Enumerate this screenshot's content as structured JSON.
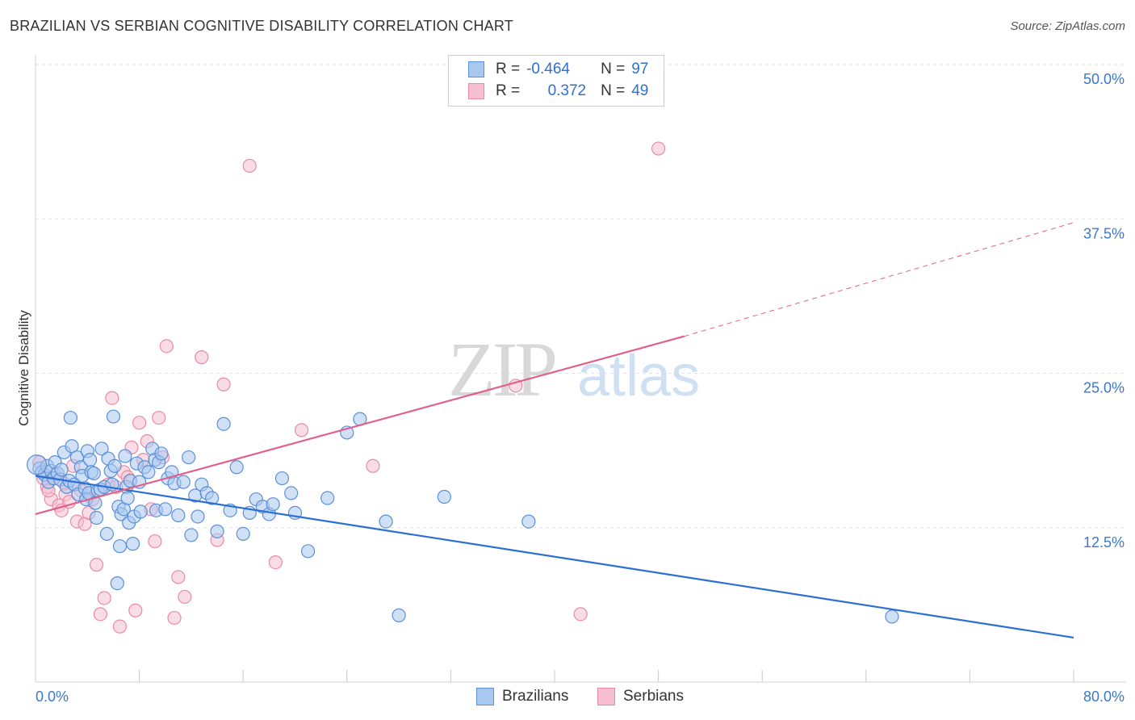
{
  "title": "BRAZILIAN VS SERBIAN COGNITIVE DISABILITY CORRELATION CHART",
  "source": "Source: ZipAtlas.com",
  "watermark": {
    "zip": "ZIP",
    "atlas": "atlas"
  },
  "legend": {
    "brazilians": {
      "r_label": "R =",
      "r_value": "-0.464",
      "n_label": "N =",
      "n_value": "97"
    },
    "serbians": {
      "r_label": "R =",
      "r_value": "0.372",
      "n_label": "N =",
      "n_value": "49"
    }
  },
  "bottom_legend": {
    "brazilians": "Brazilians",
    "serbians": "Serbians"
  },
  "colors": {
    "blue_fill": "#a9c8f0",
    "blue_stroke": "#5b8fd8",
    "blue_line": "#2a6fd1",
    "pink_fill": "#f6bfd0",
    "pink_stroke": "#e88aa8",
    "pink_line": "#e0608a",
    "axis_label": "#3a78cf",
    "grid": "#e2e2e2"
  },
  "chart_data": {
    "type": "scatter",
    "title": "BRAZILIAN VS SERBIAN COGNITIVE DISABILITY CORRELATION CHART",
    "xlabel": "",
    "ylabel": "Cognitive Disability",
    "xlim": [
      0,
      80
    ],
    "ylim": [
      0,
      50
    ],
    "x_tick_labels": [
      "0.0%",
      "80.0%"
    ],
    "y_tick_labels": [
      "12.5%",
      "25.0%",
      "37.5%",
      "50.0%"
    ],
    "y_ticks": [
      12.5,
      25.0,
      37.5,
      50.0
    ],
    "grid": "horizontal dashed",
    "series": [
      {
        "name": "Brazilians",
        "r": -0.464,
        "n": 97,
        "trend": {
          "x": [
            0,
            80
          ],
          "y": [
            16.7,
            3.6
          ]
        },
        "points": [
          [
            0.3,
            17.3
          ],
          [
            0.5,
            17.0
          ],
          [
            0.7,
            16.8
          ],
          [
            0.9,
            17.5
          ],
          [
            1.0,
            16.2
          ],
          [
            1.2,
            17.1
          ],
          [
            1.4,
            16.5
          ],
          [
            1.5,
            17.8
          ],
          [
            1.7,
            16.9
          ],
          [
            1.9,
            16.4
          ],
          [
            2.0,
            17.2
          ],
          [
            2.2,
            18.6
          ],
          [
            2.4,
            15.8
          ],
          [
            2.6,
            16.3
          ],
          [
            2.7,
            21.4
          ],
          [
            2.8,
            19.1
          ],
          [
            3.0,
            16.0
          ],
          [
            3.2,
            18.2
          ],
          [
            3.3,
            15.2
          ],
          [
            3.5,
            17.4
          ],
          [
            3.6,
            16.7
          ],
          [
            3.8,
            15.7
          ],
          [
            3.9,
            14.8
          ],
          [
            4.0,
            18.7
          ],
          [
            4.1,
            15.3
          ],
          [
            4.2,
            18.0
          ],
          [
            4.3,
            17.0
          ],
          [
            4.5,
            16.9
          ],
          [
            4.6,
            14.5
          ],
          [
            4.7,
            13.3
          ],
          [
            4.8,
            15.5
          ],
          [
            5.0,
            15.6
          ],
          [
            5.1,
            18.9
          ],
          [
            5.3,
            15.8
          ],
          [
            5.5,
            12.0
          ],
          [
            5.6,
            18.1
          ],
          [
            5.8,
            17.1
          ],
          [
            5.9,
            16.0
          ],
          [
            6.0,
            21.5
          ],
          [
            6.1,
            17.5
          ],
          [
            6.3,
            8.0
          ],
          [
            6.4,
            14.2
          ],
          [
            6.5,
            11.0
          ],
          [
            6.6,
            13.6
          ],
          [
            6.8,
            14.0
          ],
          [
            6.9,
            18.3
          ],
          [
            7.0,
            15.8
          ],
          [
            7.1,
            14.9
          ],
          [
            7.2,
            12.9
          ],
          [
            7.3,
            16.3
          ],
          [
            7.5,
            11.2
          ],
          [
            7.6,
            13.4
          ],
          [
            7.8,
            17.7
          ],
          [
            8.0,
            16.2
          ],
          [
            8.1,
            13.8
          ],
          [
            8.4,
            17.4
          ],
          [
            8.7,
            17.0
          ],
          [
            9.0,
            18.9
          ],
          [
            9.2,
            18.0
          ],
          [
            9.3,
            13.9
          ],
          [
            9.5,
            17.8
          ],
          [
            9.7,
            18.5
          ],
          [
            10.0,
            14.0
          ],
          [
            10.2,
            16.5
          ],
          [
            10.5,
            17.0
          ],
          [
            10.7,
            16.1
          ],
          [
            11.0,
            13.5
          ],
          [
            11.4,
            16.2
          ],
          [
            11.8,
            18.2
          ],
          [
            12.0,
            11.9
          ],
          [
            12.3,
            15.1
          ],
          [
            12.5,
            13.4
          ],
          [
            12.8,
            16.0
          ],
          [
            13.2,
            15.3
          ],
          [
            13.6,
            14.9
          ],
          [
            14.0,
            12.2
          ],
          [
            14.5,
            20.9
          ],
          [
            15.0,
            13.9
          ],
          [
            15.5,
            17.4
          ],
          [
            16.0,
            12.0
          ],
          [
            16.5,
            13.7
          ],
          [
            17.0,
            14.8
          ],
          [
            17.5,
            14.2
          ],
          [
            18.0,
            13.6
          ],
          [
            18.3,
            14.4
          ],
          [
            19.0,
            16.5
          ],
          [
            19.7,
            15.3
          ],
          [
            20.0,
            13.7
          ],
          [
            21.0,
            10.6
          ],
          [
            22.5,
            14.9
          ],
          [
            24.0,
            20.2
          ],
          [
            25.0,
            21.3
          ],
          [
            27.0,
            13.0
          ],
          [
            28.0,
            5.4
          ],
          [
            31.5,
            15.0
          ],
          [
            38.0,
            13.0
          ],
          [
            66.0,
            5.3
          ]
        ]
      },
      {
        "name": "Serbians",
        "r": 0.372,
        "n": 49,
        "trend": {
          "x": [
            0,
            50
          ],
          "y": [
            13.6,
            28.0
          ],
          "dashed_to": {
            "x": 80,
            "y": 37.2
          }
        },
        "points": [
          [
            0.3,
            17.8
          ],
          [
            0.6,
            16.5
          ],
          [
            0.9,
            15.8
          ],
          [
            1.2,
            14.8
          ],
          [
            1.5,
            16.8
          ],
          [
            1.8,
            14.3
          ],
          [
            2.0,
            13.9
          ],
          [
            2.3,
            15.2
          ],
          [
            2.6,
            14.6
          ],
          [
            2.9,
            17.5
          ],
          [
            3.2,
            13.0
          ],
          [
            3.5,
            15.5
          ],
          [
            3.8,
            12.8
          ],
          [
            4.1,
            13.7
          ],
          [
            4.4,
            14.8
          ],
          [
            4.7,
            9.5
          ],
          [
            5.0,
            5.5
          ],
          [
            5.3,
            6.8
          ],
          [
            5.6,
            16.0
          ],
          [
            5.9,
            23.0
          ],
          [
            6.2,
            15.8
          ],
          [
            6.5,
            4.5
          ],
          [
            6.8,
            17.0
          ],
          [
            7.1,
            16.6
          ],
          [
            7.4,
            19.0
          ],
          [
            7.7,
            5.8
          ],
          [
            8.0,
            21.0
          ],
          [
            8.3,
            18.0
          ],
          [
            8.6,
            19.5
          ],
          [
            8.9,
            14.0
          ],
          [
            9.2,
            11.4
          ],
          [
            9.5,
            21.4
          ],
          [
            9.8,
            18.2
          ],
          [
            10.1,
            27.2
          ],
          [
            10.7,
            5.2
          ],
          [
            11.0,
            8.5
          ],
          [
            11.5,
            6.9
          ],
          [
            12.8,
            26.3
          ],
          [
            14.0,
            11.5
          ],
          [
            14.5,
            24.1
          ],
          [
            16.5,
            41.8
          ],
          [
            18.5,
            9.7
          ],
          [
            20.5,
            20.4
          ],
          [
            26.0,
            17.5
          ],
          [
            37.0,
            24.0
          ],
          [
            42.0,
            5.5
          ],
          [
            48.0,
            43.2
          ],
          [
            1.0,
            15.5
          ],
          [
            2.2,
            16.1
          ]
        ]
      }
    ]
  }
}
